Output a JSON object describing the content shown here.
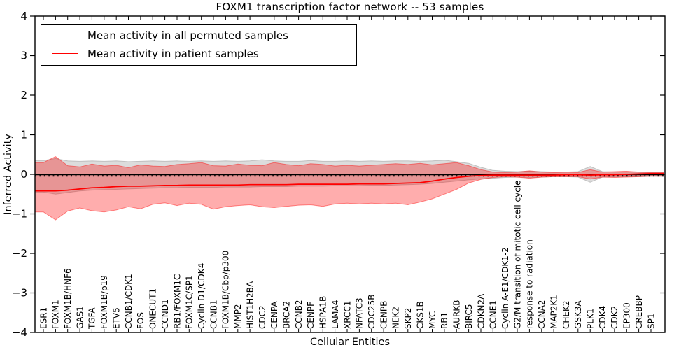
{
  "figure": {
    "background": "#ffffff"
  },
  "chart_data": {
    "type": "line",
    "title": "FOXM1 transcription factor network -- 53 samples",
    "xlabel": "Cellular Entities",
    "ylabel": "Inferred Activity",
    "ylim": [
      -4,
      4
    ],
    "y_ticks": [
      4,
      3,
      2,
      1,
      0,
      -1,
      -2,
      -3,
      -4
    ],
    "grid": false,
    "legend_position": "upper left",
    "categories": [
      "ESR1",
      "FOXM1",
      "FOXM1B/HNF6",
      "GAS1",
      "TGFA",
      "FOXM1B/p19",
      "ETV5",
      "CCNB1/CDK1",
      "FOS",
      "ONECUT1",
      "CCND1",
      "RB1/FOXM1C",
      "FOXM1C/SP1",
      "Cyclin D1/CDK4",
      "CCNB1",
      "FOXM1B/Cbp/p300",
      "MMP2",
      "HIST1H2BA",
      "CDC2",
      "CENPA",
      "BRCA2",
      "CCNB2",
      "CENPF",
      "HSPA1B",
      "LAMA4",
      "XRCC1",
      "NFATC3",
      "CDC25B",
      "CENPB",
      "NEK2",
      "SKP2",
      "CKS1B",
      "MYC",
      "RB1",
      "AURKB",
      "BIRC5",
      "CDKN2A",
      "CCNE1",
      "Cyclin A-E1/CDK1-2",
      "G2/M transition of mitotic cell cycle",
      "response to radiation",
      "CCNA2",
      "MAP2K1",
      "CHEK2",
      "GSK3A",
      "PLK1",
      "CDK4",
      "CDK2",
      "EP300",
      "CREBBP",
      "SP1"
    ],
    "series": [
      {
        "name": "Mean activity in all permuted samples",
        "color": "#000000",
        "style": "solid",
        "values": [
          -0.01,
          -0.01,
          -0.01,
          -0.01,
          -0.01,
          -0.01,
          -0.01,
          -0.01,
          -0.01,
          -0.01,
          -0.01,
          -0.01,
          -0.01,
          -0.01,
          -0.01,
          -0.01,
          -0.01,
          -0.01,
          -0.01,
          -0.01,
          -0.01,
          -0.01,
          -0.01,
          -0.01,
          -0.01,
          -0.01,
          -0.01,
          -0.01,
          -0.01,
          -0.01,
          -0.01,
          -0.01,
          -0.01,
          -0.01,
          -0.01,
          -0.01,
          -0.01,
          -0.01,
          -0.01,
          -0.01,
          -0.01,
          -0.01,
          -0.01,
          -0.01,
          -0.01,
          -0.01,
          -0.01,
          -0.01,
          -0.01,
          -0.01,
          -0.01
        ]
      },
      {
        "name": "Mean activity in patient samples",
        "color": "#ff0000",
        "style": "solid",
        "values": [
          -0.42,
          -0.42,
          -0.4,
          -0.37,
          -0.34,
          -0.33,
          -0.31,
          -0.3,
          -0.3,
          -0.29,
          -0.28,
          -0.28,
          -0.27,
          -0.27,
          -0.27,
          -0.27,
          -0.27,
          -0.26,
          -0.26,
          -0.26,
          -0.26,
          -0.25,
          -0.25,
          -0.25,
          -0.25,
          -0.25,
          -0.24,
          -0.24,
          -0.24,
          -0.23,
          -0.22,
          -0.21,
          -0.17,
          -0.12,
          -0.08,
          -0.05,
          -0.03,
          -0.02,
          -0.02,
          -0.02,
          -0.02,
          -0.02,
          -0.02,
          -0.01,
          -0.01,
          -0.02,
          -0.01,
          -0.01,
          0.0,
          0.01,
          0.02
        ]
      }
    ],
    "bands": [
      {
        "name": "permuted samples range",
        "color": "#808080",
        "opacity": 0.28,
        "upper": [
          0.35,
          0.4,
          0.34,
          0.33,
          0.34,
          0.33,
          0.34,
          0.32,
          0.33,
          0.34,
          0.33,
          0.34,
          0.33,
          0.34,
          0.33,
          0.34,
          0.33,
          0.34,
          0.37,
          0.34,
          0.33,
          0.33,
          0.35,
          0.33,
          0.33,
          0.34,
          0.33,
          0.34,
          0.33,
          0.34,
          0.34,
          0.33,
          0.34,
          0.36,
          0.32,
          0.28,
          0.18,
          0.1,
          0.08,
          0.07,
          0.08,
          0.07,
          0.06,
          0.06,
          0.07,
          0.2,
          0.07,
          0.06,
          0.06,
          0.06,
          0.05
        ],
        "lower": [
          -0.45,
          -0.5,
          -0.46,
          -0.42,
          -0.4,
          -0.39,
          -0.38,
          -0.37,
          -0.36,
          -0.35,
          -0.34,
          -0.34,
          -0.33,
          -0.33,
          -0.33,
          -0.32,
          -0.32,
          -0.32,
          -0.31,
          -0.31,
          -0.31,
          -0.3,
          -0.3,
          -0.3,
          -0.29,
          -0.29,
          -0.29,
          -0.28,
          -0.28,
          -0.27,
          -0.26,
          -0.25,
          -0.23,
          -0.2,
          -0.17,
          -0.14,
          -0.12,
          -0.1,
          -0.08,
          -0.07,
          -0.08,
          -0.07,
          -0.06,
          -0.06,
          -0.07,
          -0.2,
          -0.07,
          -0.06,
          -0.06,
          -0.06,
          -0.05
        ]
      },
      {
        "name": "patient samples range",
        "color": "#ff0000",
        "opacity": 0.32,
        "upper": [
          0.3,
          0.45,
          0.22,
          0.19,
          0.26,
          0.21,
          0.23,
          0.17,
          0.24,
          0.21,
          0.2,
          0.25,
          0.27,
          0.3,
          0.22,
          0.21,
          0.26,
          0.23,
          0.22,
          0.3,
          0.25,
          0.22,
          0.27,
          0.25,
          0.21,
          0.23,
          0.21,
          0.23,
          0.25,
          0.27,
          0.25,
          0.28,
          0.24,
          0.27,
          0.3,
          0.22,
          0.12,
          0.06,
          0.05,
          0.06,
          0.09,
          0.06,
          0.05,
          0.06,
          0.05,
          0.12,
          0.06,
          0.07,
          0.08,
          0.06,
          0.05
        ],
        "lower": [
          -0.95,
          -1.15,
          -0.93,
          -0.85,
          -0.92,
          -0.95,
          -0.9,
          -0.82,
          -0.87,
          -0.76,
          -0.72,
          -0.79,
          -0.73,
          -0.76,
          -0.88,
          -0.82,
          -0.79,
          -0.77,
          -0.82,
          -0.84,
          -0.81,
          -0.78,
          -0.77,
          -0.81,
          -0.75,
          -0.73,
          -0.75,
          -0.73,
          -0.75,
          -0.73,
          -0.77,
          -0.7,
          -0.62,
          -0.5,
          -0.38,
          -0.22,
          -0.13,
          -0.08,
          -0.06,
          -0.07,
          -0.1,
          -0.07,
          -0.06,
          -0.06,
          -0.06,
          -0.12,
          -0.07,
          -0.08,
          -0.07,
          -0.06,
          -0.05
        ]
      }
    ],
    "zero_line": {
      "style": "dotted",
      "color": "#000000",
      "y": 0
    }
  }
}
